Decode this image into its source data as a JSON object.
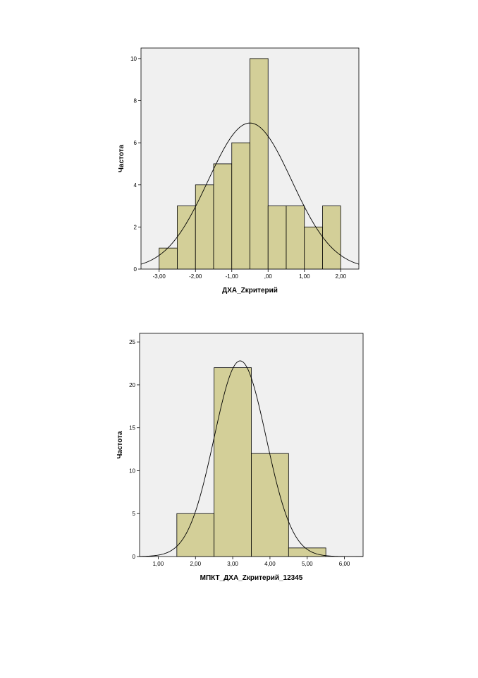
{
  "chart_data": [
    {
      "type": "bar",
      "xlabel": "ДХА_Zкритерий",
      "ylabel": "Частота",
      "bin_edges": [
        -3.0,
        -2.5,
        -2.0,
        -1.5,
        -1.0,
        -0.5,
        0.0,
        0.5,
        1.0,
        1.5,
        2.0
      ],
      "values": [
        1,
        3,
        4,
        5,
        6,
        10,
        3,
        3,
        2,
        3
      ],
      "x_ticks": [
        -3,
        -2,
        -1,
        0,
        1,
        2
      ],
      "x_tick_labels": [
        "-3,00",
        "-2,00",
        "-1,00",
        ",00",
        "1,00",
        "2,00"
      ],
      "y_ticks": [
        0,
        2,
        4,
        6,
        8,
        10
      ],
      "y_tick_labels": [
        "0",
        "2",
        "4",
        "6",
        "8",
        "10"
      ],
      "xlim": [
        -3.5,
        2.5
      ],
      "ylim": [
        0,
        10.5
      ],
      "normal_curve": {
        "mean": -0.5,
        "sd": 1.15,
        "n": 40,
        "bin_width": 0.5
      },
      "bar_color": "#d3cf98",
      "plot_background": "#f0f0f0",
      "grid": false
    },
    {
      "type": "bar",
      "xlabel": "МПКТ_ДХА_Zкритерий_12345",
      "ylabel": "Частота",
      "bin_edges": [
        1.5,
        2.5,
        3.5,
        4.5,
        5.5
      ],
      "values": [
        5,
        22,
        12,
        1
      ],
      "x_ticks": [
        1,
        2,
        3,
        4,
        5,
        6
      ],
      "x_tick_labels": [
        "1,00",
        "2,00",
        "3,00",
        "4,00",
        "5,00",
        "6,00"
      ],
      "y_ticks": [
        0,
        5,
        10,
        15,
        20,
        25
      ],
      "y_tick_labels": [
        "0",
        "5",
        "10",
        "15",
        "20",
        "25"
      ],
      "xlim": [
        0.5,
        6.5
      ],
      "ylim": [
        0,
        26
      ],
      "normal_curve": {
        "mean": 3.2,
        "sd": 0.7,
        "n": 40,
        "bin_width": 1
      },
      "bar_color": "#d3cf98",
      "plot_background": "#f0f0f0",
      "grid": false
    }
  ]
}
